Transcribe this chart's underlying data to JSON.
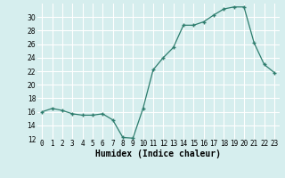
{
  "x": [
    0,
    1,
    2,
    3,
    4,
    5,
    6,
    7,
    8,
    9,
    10,
    11,
    12,
    13,
    14,
    15,
    16,
    17,
    18,
    19,
    20,
    21,
    22,
    23
  ],
  "y": [
    16,
    16.5,
    16.2,
    15.7,
    15.5,
    15.5,
    15.7,
    14.8,
    12.2,
    12.1,
    16.5,
    22.2,
    24.0,
    25.5,
    28.8,
    28.8,
    29.3,
    30.3,
    31.2,
    31.5,
    31.5,
    26.2,
    23.0,
    21.8
  ],
  "line_color": "#2e7d6e",
  "marker": "+",
  "marker_size": 3,
  "marker_linewidth": 1.0,
  "background_color": "#d6eeee",
  "grid_color": "#b8d8d8",
  "xlabel": "Humidex (Indice chaleur)",
  "ylim": [
    12,
    32
  ],
  "xlim": [
    -0.5,
    23.5
  ],
  "yticks": [
    12,
    14,
    16,
    18,
    20,
    22,
    24,
    26,
    28,
    30
  ],
  "xtick_labels": [
    "0",
    "1",
    "2",
    "3",
    "4",
    "5",
    "6",
    "7",
    "8",
    "9",
    "10",
    "11",
    "12",
    "13",
    "14",
    "15",
    "16",
    "17",
    "18",
    "19",
    "20",
    "21",
    "22",
    "23"
  ],
  "tick_fontsize": 5.5,
  "xlabel_fontsize": 7
}
